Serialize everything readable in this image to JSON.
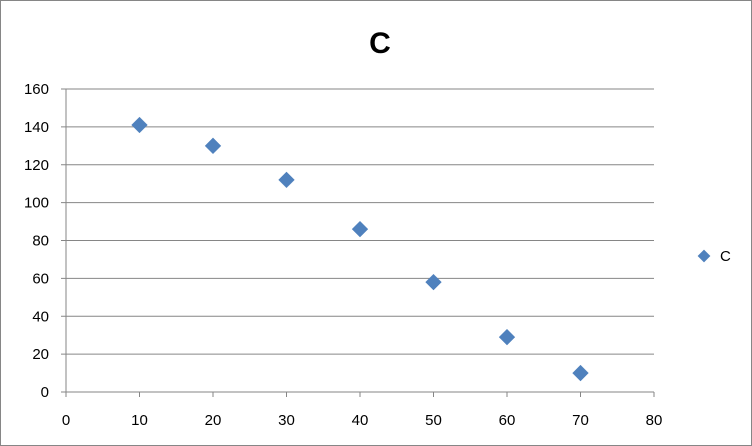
{
  "chart_data": {
    "type": "scatter",
    "title": "C",
    "xlabel": "",
    "ylabel": "",
    "xlim": [
      0,
      80
    ],
    "ylim": [
      0,
      160
    ],
    "x_ticks": [
      0,
      10,
      20,
      30,
      40,
      50,
      60,
      70,
      80
    ],
    "y_ticks": [
      0,
      20,
      40,
      60,
      80,
      100,
      120,
      140,
      160
    ],
    "grid": "horizontal",
    "legend_position": "right",
    "series": [
      {
        "name": "C",
        "color": "#4F81BD",
        "marker": "diamond",
        "points": [
          {
            "x": 10,
            "y": 141
          },
          {
            "x": 20,
            "y": 130
          },
          {
            "x": 30,
            "y": 112
          },
          {
            "x": 40,
            "y": 86
          },
          {
            "x": 50,
            "y": 58
          },
          {
            "x": 60,
            "y": 29
          },
          {
            "x": 70,
            "y": 10
          }
        ]
      }
    ]
  }
}
